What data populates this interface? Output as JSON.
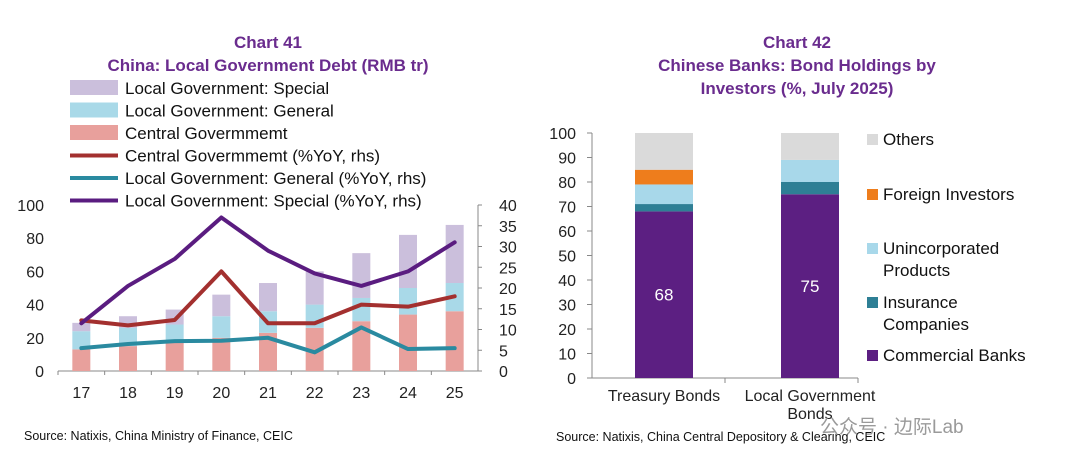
{
  "chart_data": [
    {
      "type": "bar",
      "id": "chart41",
      "title_line1": "Chart 41",
      "title_line2": "China: Local Government Debt (RMB tr)",
      "categories": [
        "17",
        "18",
        "19",
        "20",
        "21",
        "22",
        "23",
        "24",
        "25"
      ],
      "ylim": [
        0,
        100
      ],
      "yticks": [
        0,
        20,
        40,
        60,
        80,
        100
      ],
      "y2lim": [
        0,
        40
      ],
      "y2ticks": [
        0,
        5,
        10,
        15,
        20,
        25,
        30,
        35,
        40
      ],
      "stacked_series": [
        {
          "name": "Central Govermmemt",
          "color": "#e8a09c",
          "values": [
            13,
            15,
            17,
            20,
            23,
            26,
            30,
            34,
            36
          ]
        },
        {
          "name": "Local Government: General",
          "color": "#a9d9e8",
          "values": [
            11,
            11,
            11,
            13,
            13,
            14,
            14,
            16,
            17
          ]
        },
        {
          "name": "Local Government: Special",
          "color": "#cbbfdc",
          "values": [
            5,
            7,
            9,
            13,
            17,
            20,
            27,
            32,
            35
          ]
        }
      ],
      "line_series": [
        {
          "name": "Central Govermmemt  (%YoY, rhs)",
          "color": "#a3302f",
          "values": [
            12.2,
            11,
            12.3,
            24,
            11.5,
            11.5,
            16,
            15.5,
            18
          ]
        },
        {
          "name": "Local Government: General (%YoY, rhs)",
          "color": "#2a8aa0",
          "values": [
            5.5,
            6.5,
            7.2,
            7.3,
            8,
            4.5,
            10.5,
            5.3,
            5.5
          ]
        },
        {
          "name": "Local Government: Special (%YoY, rhs)",
          "color": "#5a1c80",
          "values": [
            11.5,
            20.5,
            27,
            37,
            29,
            23.5,
            20.5,
            24,
            31
          ]
        }
      ],
      "legend_order": [
        {
          "label": "Local Government: Special",
          "kind": "bar",
          "color": "#cbbfdc"
        },
        {
          "label": "Local Government: General",
          "kind": "bar",
          "color": "#a9d9e8"
        },
        {
          "label": "Central Govermmemt",
          "kind": "bar",
          "color": "#e8a09c"
        },
        {
          "label": "Central Govermmemt  (%YoY, rhs)",
          "kind": "line",
          "color": "#a3302f"
        },
        {
          "label": "Local Government: General (%YoY, rhs)",
          "kind": "line",
          "color": "#2a8aa0"
        },
        {
          "label": "Local Government: Special (%YoY, rhs)",
          "kind": "line",
          "color": "#5a1c80"
        }
      ],
      "source": "Source: Natixis, China Ministry of Finance, CEIC"
    },
    {
      "type": "bar",
      "id": "chart42",
      "title_line1": "Chart 42",
      "title_line2": "Chinese Banks: Bond Holdings by",
      "title_line3": "Investors (%, July 2025)",
      "categories": [
        "Treasury Bonds",
        "Local Government Bonds"
      ],
      "ylim": [
        0,
        100
      ],
      "yticks": [
        0,
        10,
        20,
        30,
        40,
        50,
        60,
        70,
        80,
        90,
        100
      ],
      "series": [
        {
          "name": "Commercial Banks",
          "color": "#5c1f82",
          "values": [
            68,
            75
          ]
        },
        {
          "name": "Insurance Companies",
          "color": "#2e7f95",
          "values": [
            3,
            5
          ]
        },
        {
          "name": "Unincorporated Products",
          "color": "#a8d8ea",
          "values": [
            8,
            9
          ]
        },
        {
          "name": "Foreign Investors",
          "color": "#ee7d1c",
          "values": [
            6,
            0
          ]
        },
        {
          "name": "Others",
          "color": "#dadada",
          "values": [
            15,
            11
          ]
        }
      ],
      "data_labels": [
        "68",
        "75"
      ],
      "legend": [
        {
          "label": "Others",
          "color": "#dadada"
        },
        {
          "label": "Foreign Investors",
          "color": "#ee7d1c"
        },
        {
          "label": "Unincorporated\nProducts",
          "color": "#a8d8ea"
        },
        {
          "label": "Insurance\nCompanies",
          "color": "#2e7f95"
        },
        {
          "label": "Commercial Banks",
          "color": "#5c1f82"
        }
      ],
      "source": "Source: Natixis, China Central Depository & Clearing, CEIC"
    }
  ],
  "watermark": "公众号 · 边际Lab"
}
